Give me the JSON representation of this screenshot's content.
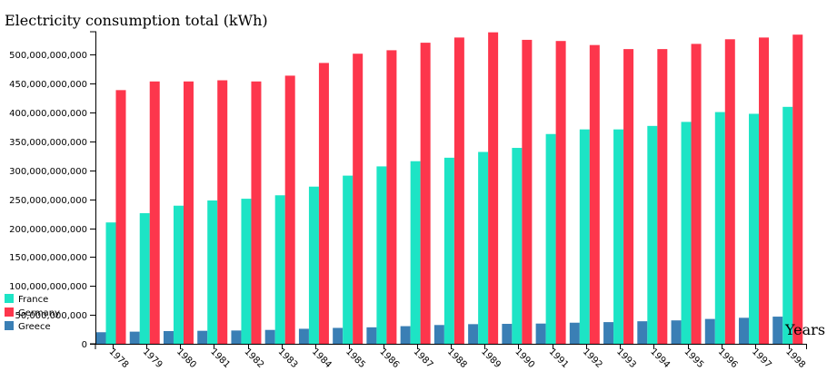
{
  "chart_data": {
    "type": "bar",
    "title": "Electricity consumption total (kWh)",
    "xlabel": "Years",
    "ylabel": "",
    "ylim": [
      0,
      540000000000
    ],
    "yticks": [
      0,
      50000000000,
      100000000000,
      150000000000,
      200000000000,
      250000000000,
      300000000000,
      350000000000,
      400000000000,
      450000000000,
      500000000000
    ],
    "ytick_labels": [
      "0",
      "50,000,000,000",
      "100,000,000,000",
      "150,000,000,000",
      "200,000,000,000",
      "250,000,000,000",
      "300,000,000,000",
      "350,000,000,000",
      "400,000,000,000",
      "450,000,000,000",
      "500,000,000,000"
    ],
    "categories": [
      "1978",
      "1979",
      "1980",
      "1981",
      "1982",
      "1983",
      "1984",
      "1985",
      "1986",
      "1987",
      "1988",
      "1989",
      "1990",
      "1991",
      "1992",
      "1993",
      "1994",
      "1995",
      "1996",
      "1997",
      "1998"
    ],
    "legend_position": "bottom-left",
    "grid": false,
    "series": [
      {
        "name": "Greece",
        "color": "#3a7fb5",
        "values": [
          20000000000,
          21000000000,
          22000000000,
          22500000000,
          23000000000,
          24000000000,
          26000000000,
          27500000000,
          28500000000,
          30500000000,
          32500000000,
          34000000000,
          34500000000,
          35000000000,
          36500000000,
          37500000000,
          39000000000,
          40500000000,
          43000000000,
          45000000000,
          47000000000
        ]
      },
      {
        "name": "France",
        "color": "#1de4c5",
        "values": [
          210000000000,
          226000000000,
          239000000000,
          248000000000,
          251000000000,
          257000000000,
          272000000000,
          291000000000,
          307000000000,
          316000000000,
          322000000000,
          332000000000,
          339000000000,
          363000000000,
          371000000000,
          371000000000,
          377000000000,
          384000000000,
          401000000000,
          398000000000,
          410000000000
        ]
      },
      {
        "name": "Germany",
        "color": "#fd364c",
        "values": [
          439000000000,
          454000000000,
          454000000000,
          456000000000,
          454000000000,
          464000000000,
          486000000000,
          502000000000,
          508000000000,
          521000000000,
          530000000000,
          539000000000,
          526000000000,
          524000000000,
          517000000000,
          510000000000,
          510000000000,
          519000000000,
          527000000000,
          530000000000,
          535000000000
        ]
      }
    ],
    "legend_order": [
      "France",
      "Germany",
      "Greece"
    ]
  }
}
